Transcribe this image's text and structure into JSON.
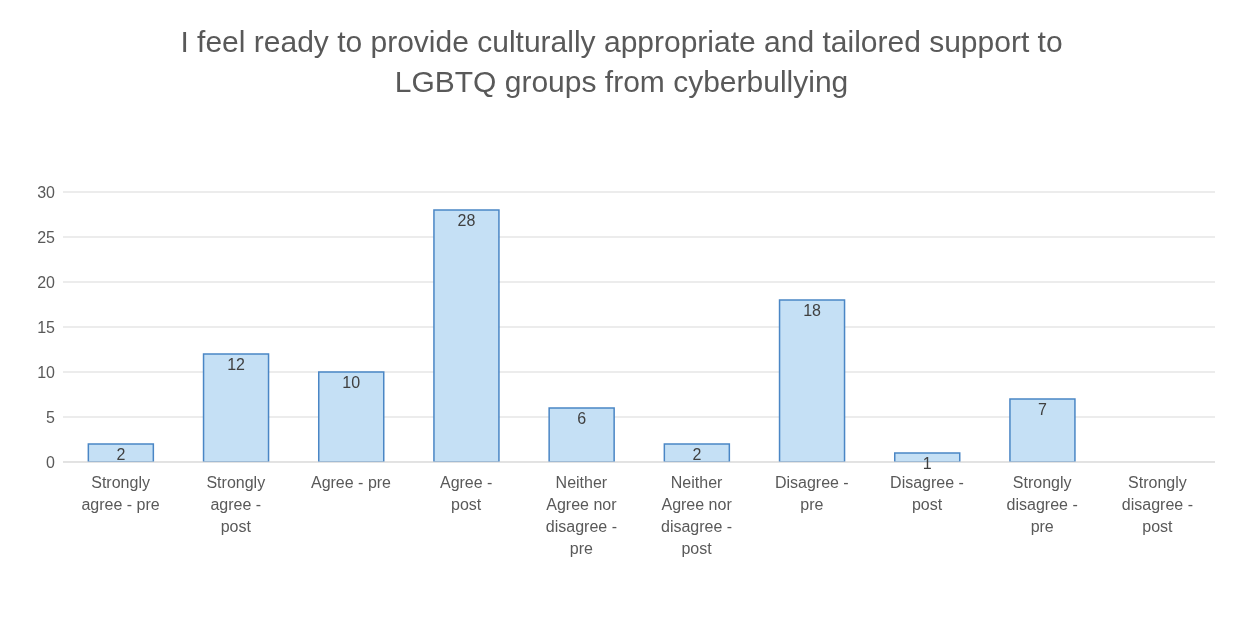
{
  "chart_data": {
    "type": "bar",
    "title": "I feel ready to provide culturally appropriate and tailored support to LGBTQ groups from cyberbullying",
    "categories": [
      "Strongly agree - pre",
      "Strongly agree - post",
      "Agree - pre",
      "Agree - post",
      "Neither Agree nor disagree - pre",
      "Neither Agree nor disagree - post",
      "Disagree - pre",
      "Disagree - post",
      "Strongly disagree - pre",
      "Strongly disagree - post"
    ],
    "values": [
      2,
      12,
      10,
      28,
      6,
      2,
      18,
      1,
      7,
      0
    ],
    "value_labels": [
      "2",
      "12",
      "10",
      "28",
      "6",
      "2",
      "18",
      "1",
      "7",
      null
    ],
    "color": "#c5e0f5",
    "ylim": [
      0,
      30
    ],
    "yticks": [
      0,
      5,
      10,
      15,
      20,
      25,
      30
    ],
    "grid": "y",
    "legend": false
  }
}
